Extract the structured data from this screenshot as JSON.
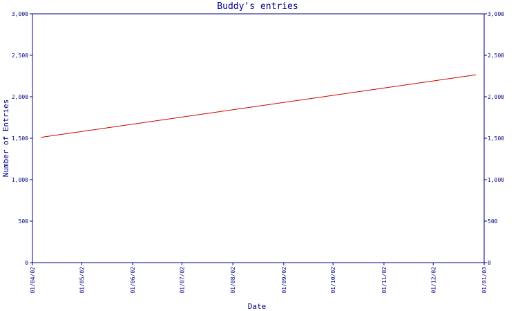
{
  "chart_data": {
    "type": "line",
    "title": "Buddy's entries",
    "xlabel": "Date",
    "ylabel": "Number of Entries",
    "x_tick_labels": [
      "01/04/02",
      "01/05/02",
      "01/06/02",
      "01/07/02",
      "01/08/02",
      "01/09/02",
      "01/10/02",
      "01/11/02",
      "01/12/02",
      "01/01/03"
    ],
    "y_ticks": [
      0,
      500,
      1000,
      1500,
      2000,
      2500,
      3000
    ],
    "y_tick_labels": [
      "0",
      "500",
      "1,000",
      "1,500",
      "2,000",
      "2,500",
      "3,000"
    ],
    "ylim": [
      0,
      3000
    ],
    "xlim": [
      "2002-04-01",
      "2003-01-01"
    ],
    "grid": false,
    "series": [
      {
        "x": [
          "2002-04-06",
          "2002-12-27"
        ],
        "y": [
          1510,
          2265
        ]
      }
    ]
  },
  "colors": {
    "axis": "#000080",
    "line": "#cc0000",
    "background": "#ffffff"
  }
}
